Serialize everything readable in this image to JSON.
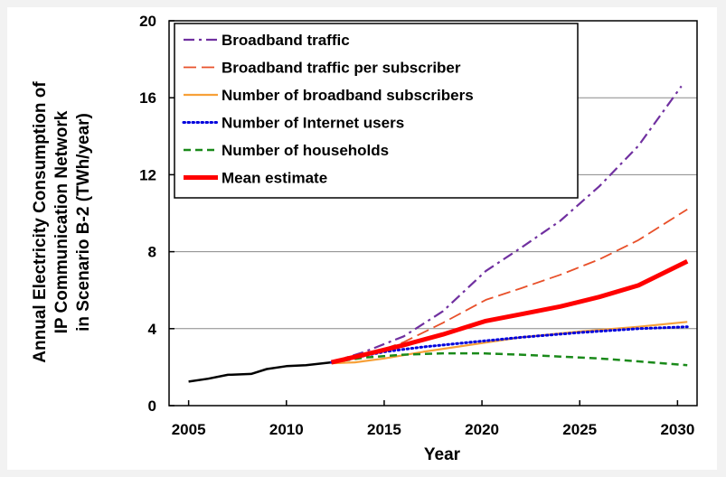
{
  "chart_data": {
    "type": "line",
    "xlabel": "Year",
    "ylabel_lines": [
      "Annual Electricity Consumption of",
      "IP Communication Network",
      "in Scenario B-2 (TWh/year)"
    ],
    "xlim": [
      2004,
      2031
    ],
    "ylim": [
      0,
      20
    ],
    "x_ticks": [
      2005,
      2010,
      2015,
      2020,
      2025,
      2030
    ],
    "y_ticks": [
      0,
      4,
      8,
      12,
      16,
      20
    ],
    "grid": "horizontal",
    "legend_position": "top-left",
    "historical": {
      "color": "#000000",
      "points": [
        [
          2005,
          1.25
        ],
        [
          2006,
          1.4
        ],
        [
          2007,
          1.6
        ],
        [
          2008.2,
          1.65
        ],
        [
          2009,
          1.9
        ],
        [
          2010,
          2.05
        ],
        [
          2011,
          2.1
        ],
        [
          2012.3,
          2.25
        ]
      ]
    },
    "series": [
      {
        "name": "Broadband traffic",
        "color": "#7030a0",
        "dash": "dashdot",
        "width": 2.2,
        "points": [
          [
            2012.3,
            2.25
          ],
          [
            2014,
            2.8
          ],
          [
            2016,
            3.6
          ],
          [
            2018,
            4.9
          ],
          [
            2020.2,
            7.0
          ],
          [
            2022,
            8.2
          ],
          [
            2024,
            9.6
          ],
          [
            2026,
            11.4
          ],
          [
            2028,
            13.5
          ],
          [
            2030.2,
            16.6
          ]
        ]
      },
      {
        "name": "Broadband traffic per subscriber",
        "color": "#e8502a",
        "dash": "longdash",
        "width": 1.8,
        "points": [
          [
            2012.3,
            2.25
          ],
          [
            2014,
            2.6
          ],
          [
            2016,
            3.3
          ],
          [
            2018,
            4.3
          ],
          [
            2020.2,
            5.5
          ],
          [
            2022,
            6.1
          ],
          [
            2024,
            6.8
          ],
          [
            2026,
            7.6
          ],
          [
            2028,
            8.6
          ],
          [
            2030.5,
            10.2
          ]
        ]
      },
      {
        "name": "Number of broadband subscribers",
        "color": "#f7a038",
        "dash": "solid",
        "width": 2.2,
        "points": [
          [
            2012.3,
            2.2
          ],
          [
            2013.5,
            2.25
          ],
          [
            2015,
            2.45
          ],
          [
            2017,
            2.8
          ],
          [
            2020,
            3.25
          ],
          [
            2022,
            3.55
          ],
          [
            2025,
            3.85
          ],
          [
            2028,
            4.1
          ],
          [
            2030.5,
            4.35
          ]
        ]
      },
      {
        "name": "Number of Internet users",
        "color": "#0000dd",
        "dash": "dotted",
        "width": 3,
        "points": [
          [
            2012.3,
            2.25
          ],
          [
            2015,
            2.8
          ],
          [
            2017,
            3.05
          ],
          [
            2020,
            3.35
          ],
          [
            2022,
            3.55
          ],
          [
            2025,
            3.8
          ],
          [
            2028,
            4.0
          ],
          [
            2030.5,
            4.1
          ]
        ]
      },
      {
        "name": "Number of households",
        "color": "#1a8a1a",
        "dash": "dashed",
        "width": 2.5,
        "points": [
          [
            2012.3,
            2.25
          ],
          [
            2014,
            2.5
          ],
          [
            2016,
            2.65
          ],
          [
            2018,
            2.72
          ],
          [
            2020,
            2.72
          ],
          [
            2022,
            2.65
          ],
          [
            2024,
            2.55
          ],
          [
            2026,
            2.45
          ],
          [
            2028,
            2.3
          ],
          [
            2030.5,
            2.1
          ]
        ]
      },
      {
        "name": "Mean  estimate",
        "color": "#ff0000",
        "dash": "solid",
        "width": 5,
        "points": [
          [
            2012.3,
            2.25
          ],
          [
            2014,
            2.65
          ],
          [
            2016,
            3.15
          ],
          [
            2018,
            3.7
          ],
          [
            2020.2,
            4.4
          ],
          [
            2022,
            4.75
          ],
          [
            2024,
            5.15
          ],
          [
            2026,
            5.65
          ],
          [
            2028,
            6.25
          ],
          [
            2030.5,
            7.5
          ]
        ]
      }
    ]
  }
}
